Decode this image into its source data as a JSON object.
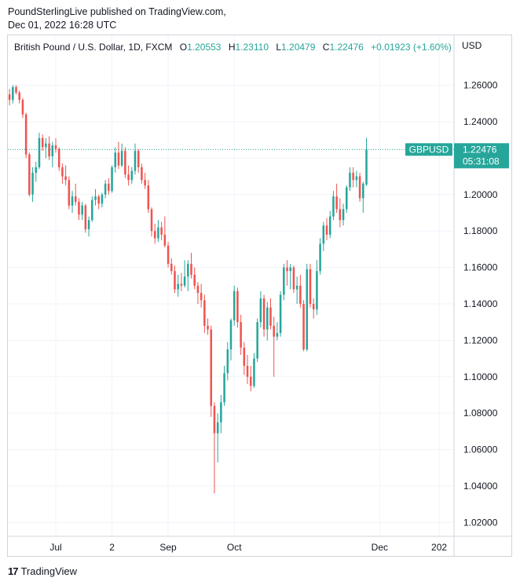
{
  "header": {
    "published_line": "PoundSterlingLive published on TradingView.com,",
    "date_line": "Dec 01, 2022 16:28 UTC"
  },
  "legend": {
    "symbol": "British Pound / U.S. Dollar, 1D, FXCM",
    "open_label": "O",
    "open": "1.20553",
    "high_label": "H",
    "high": "1.23110",
    "low_label": "L",
    "low": "1.20479",
    "close_label": "C",
    "close": "1.22476",
    "change": "+0.01923 (+1.60%)"
  },
  "footer": {
    "logo_mark": "17",
    "logo_text": "TradingView"
  },
  "colors": {
    "up": "#26a69a",
    "down": "#ef5350",
    "grid": "#f0f3fa",
    "axis_text": "#131722"
  },
  "chart_data": {
    "type": "candlestick",
    "symbol": "GBPUSD",
    "currency": "USD",
    "last_price": "1.22476",
    "countdown": "05:31:08",
    "y_ticks": [
      "1.26000",
      "1.24000",
      "1.22000",
      "1.20000",
      "1.18000",
      "1.16000",
      "1.14000",
      "1.12000",
      "1.10000",
      "1.08000",
      "1.06000",
      "1.04000",
      "1.02000"
    ],
    "ylim": [
      1.015,
      1.275
    ],
    "x_ticks": [
      {
        "label": "Jul",
        "index": 14
      },
      {
        "label": "2",
        "index": 31
      },
      {
        "label": "Sep",
        "index": 48
      },
      {
        "label": "Oct",
        "index": 68
      },
      {
        "label": "Dec",
        "index": 112
      },
      {
        "label": "202",
        "index": 130
      }
    ],
    "n_slots": 135,
    "candles": [
      {
        "o": 1.255,
        "h": 1.258,
        "l": 1.249,
        "c": 1.252
      },
      {
        "o": 1.252,
        "h": 1.26,
        "l": 1.25,
        "c": 1.259
      },
      {
        "o": 1.259,
        "h": 1.26,
        "l": 1.255,
        "c": 1.256
      },
      {
        "o": 1.256,
        "h": 1.257,
        "l": 1.25,
        "c": 1.252
      },
      {
        "o": 1.252,
        "h": 1.253,
        "l": 1.242,
        "c": 1.244
      },
      {
        "o": 1.244,
        "h": 1.245,
        "l": 1.22,
        "c": 1.222
      },
      {
        "o": 1.222,
        "h": 1.223,
        "l": 1.199,
        "c": 1.2
      },
      {
        "o": 1.2,
        "h": 1.215,
        "l": 1.196,
        "c": 1.212
      },
      {
        "o": 1.212,
        "h": 1.218,
        "l": 1.207,
        "c": 1.215
      },
      {
        "o": 1.215,
        "h": 1.234,
        "l": 1.214,
        "c": 1.231
      },
      {
        "o": 1.231,
        "h": 1.233,
        "l": 1.224,
        "c": 1.226
      },
      {
        "o": 1.226,
        "h": 1.231,
        "l": 1.22,
        "c": 1.228
      },
      {
        "o": 1.228,
        "h": 1.232,
        "l": 1.219,
        "c": 1.221
      },
      {
        "o": 1.221,
        "h": 1.229,
        "l": 1.215,
        "c": 1.227
      },
      {
        "o": 1.227,
        "h": 1.231,
        "l": 1.223,
        "c": 1.225
      },
      {
        "o": 1.225,
        "h": 1.226,
        "l": 1.213,
        "c": 1.215
      },
      {
        "o": 1.215,
        "h": 1.217,
        "l": 1.206,
        "c": 1.21
      },
      {
        "o": 1.21,
        "h": 1.216,
        "l": 1.205,
        "c": 1.208
      },
      {
        "o": 1.208,
        "h": 1.21,
        "l": 1.192,
        "c": 1.194
      },
      {
        "o": 1.194,
        "h": 1.202,
        "l": 1.19,
        "c": 1.199
      },
      {
        "o": 1.199,
        "h": 1.206,
        "l": 1.194,
        "c": 1.196
      },
      {
        "o": 1.196,
        "h": 1.198,
        "l": 1.186,
        "c": 1.189
      },
      {
        "o": 1.189,
        "h": 1.196,
        "l": 1.186,
        "c": 1.194
      },
      {
        "o": 1.194,
        "h": 1.195,
        "l": 1.179,
        "c": 1.181
      },
      {
        "o": 1.181,
        "h": 1.188,
        "l": 1.177,
        "c": 1.186
      },
      {
        "o": 1.186,
        "h": 1.199,
        "l": 1.185,
        "c": 1.197
      },
      {
        "o": 1.197,
        "h": 1.203,
        "l": 1.194,
        "c": 1.199
      },
      {
        "o": 1.199,
        "h": 1.2,
        "l": 1.192,
        "c": 1.195
      },
      {
        "o": 1.195,
        "h": 1.201,
        "l": 1.193,
        "c": 1.2
      },
      {
        "o": 1.2,
        "h": 1.208,
        "l": 1.198,
        "c": 1.206
      },
      {
        "o": 1.206,
        "h": 1.209,
        "l": 1.2,
        "c": 1.202
      },
      {
        "o": 1.202,
        "h": 1.216,
        "l": 1.201,
        "c": 1.215
      },
      {
        "o": 1.215,
        "h": 1.226,
        "l": 1.212,
        "c": 1.223
      },
      {
        "o": 1.223,
        "h": 1.229,
        "l": 1.214,
        "c": 1.216
      },
      {
        "o": 1.216,
        "h": 1.228,
        "l": 1.215,
        "c": 1.224
      },
      {
        "o": 1.224,
        "h": 1.226,
        "l": 1.209,
        "c": 1.211
      },
      {
        "o": 1.211,
        "h": 1.216,
        "l": 1.205,
        "c": 1.208
      },
      {
        "o": 1.208,
        "h": 1.215,
        "l": 1.206,
        "c": 1.213
      },
      {
        "o": 1.213,
        "h": 1.228,
        "l": 1.211,
        "c": 1.224
      },
      {
        "o": 1.224,
        "h": 1.225,
        "l": 1.212,
        "c": 1.215
      },
      {
        "o": 1.215,
        "h": 1.217,
        "l": 1.206,
        "c": 1.208
      },
      {
        "o": 1.208,
        "h": 1.212,
        "l": 1.203,
        "c": 1.205
      },
      {
        "o": 1.205,
        "h": 1.208,
        "l": 1.19,
        "c": 1.192
      },
      {
        "o": 1.192,
        "h": 1.193,
        "l": 1.177,
        "c": 1.18
      },
      {
        "o": 1.18,
        "h": 1.184,
        "l": 1.173,
        "c": 1.176
      },
      {
        "o": 1.176,
        "h": 1.186,
        "l": 1.174,
        "c": 1.182
      },
      {
        "o": 1.182,
        "h": 1.185,
        "l": 1.175,
        "c": 1.178
      },
      {
        "o": 1.178,
        "h": 1.188,
        "l": 1.171,
        "c": 1.172
      },
      {
        "o": 1.172,
        "h": 1.174,
        "l": 1.16,
        "c": 1.162
      },
      {
        "o": 1.162,
        "h": 1.165,
        "l": 1.156,
        "c": 1.158
      },
      {
        "o": 1.158,
        "h": 1.161,
        "l": 1.146,
        "c": 1.148
      },
      {
        "o": 1.148,
        "h": 1.156,
        "l": 1.144,
        "c": 1.151
      },
      {
        "o": 1.151,
        "h": 1.157,
        "l": 1.147,
        "c": 1.15
      },
      {
        "o": 1.15,
        "h": 1.164,
        "l": 1.149,
        "c": 1.155
      },
      {
        "o": 1.155,
        "h": 1.164,
        "l": 1.147,
        "c": 1.162
      },
      {
        "o": 1.162,
        "h": 1.168,
        "l": 1.154,
        "c": 1.156
      },
      {
        "o": 1.156,
        "h": 1.16,
        "l": 1.148,
        "c": 1.15
      },
      {
        "o": 1.15,
        "h": 1.152,
        "l": 1.14,
        "c": 1.146
      },
      {
        "o": 1.146,
        "h": 1.151,
        "l": 1.138,
        "c": 1.142
      },
      {
        "o": 1.142,
        "h": 1.145,
        "l": 1.124,
        "c": 1.128
      },
      {
        "o": 1.128,
        "h": 1.132,
        "l": 1.123,
        "c": 1.126
      },
      {
        "o": 1.126,
        "h": 1.128,
        "l": 1.078,
        "c": 1.084
      },
      {
        "o": 1.084,
        "h": 1.086,
        "l": 1.036,
        "c": 1.069
      },
      {
        "o": 1.069,
        "h": 1.08,
        "l": 1.053,
        "c": 1.075
      },
      {
        "o": 1.075,
        "h": 1.09,
        "l": 1.069,
        "c": 1.086
      },
      {
        "o": 1.086,
        "h": 1.106,
        "l": 1.084,
        "c": 1.102
      },
      {
        "o": 1.102,
        "h": 1.119,
        "l": 1.098,
        "c": 1.115
      },
      {
        "o": 1.115,
        "h": 1.132,
        "l": 1.109,
        "c": 1.131
      },
      {
        "o": 1.131,
        "h": 1.15,
        "l": 1.128,
        "c": 1.147
      },
      {
        "o": 1.147,
        "h": 1.149,
        "l": 1.127,
        "c": 1.13
      },
      {
        "o": 1.13,
        "h": 1.134,
        "l": 1.112,
        "c": 1.116
      },
      {
        "o": 1.116,
        "h": 1.119,
        "l": 1.101,
        "c": 1.106
      },
      {
        "o": 1.106,
        "h": 1.112,
        "l": 1.096,
        "c": 1.1
      },
      {
        "o": 1.1,
        "h": 1.106,
        "l": 1.092,
        "c": 1.095
      },
      {
        "o": 1.095,
        "h": 1.113,
        "l": 1.094,
        "c": 1.11
      },
      {
        "o": 1.11,
        "h": 1.132,
        "l": 1.108,
        "c": 1.13
      },
      {
        "o": 1.13,
        "h": 1.147,
        "l": 1.127,
        "c": 1.143
      },
      {
        "o": 1.143,
        "h": 1.145,
        "l": 1.122,
        "c": 1.126
      },
      {
        "o": 1.126,
        "h": 1.141,
        "l": 1.12,
        "c": 1.138
      },
      {
        "o": 1.138,
        "h": 1.143,
        "l": 1.126,
        "c": 1.128
      },
      {
        "o": 1.128,
        "h": 1.133,
        "l": 1.1,
        "c": 1.122
      },
      {
        "o": 1.122,
        "h": 1.13,
        "l": 1.12,
        "c": 1.124
      },
      {
        "o": 1.124,
        "h": 1.147,
        "l": 1.122,
        "c": 1.145
      },
      {
        "o": 1.145,
        "h": 1.162,
        "l": 1.142,
        "c": 1.16
      },
      {
        "o": 1.16,
        "h": 1.164,
        "l": 1.15,
        "c": 1.158
      },
      {
        "o": 1.158,
        "h": 1.162,
        "l": 1.148,
        "c": 1.16
      },
      {
        "o": 1.16,
        "h": 1.161,
        "l": 1.146,
        "c": 1.148
      },
      {
        "o": 1.148,
        "h": 1.155,
        "l": 1.14,
        "c": 1.15
      },
      {
        "o": 1.15,
        "h": 1.156,
        "l": 1.138,
        "c": 1.14
      },
      {
        "o": 1.14,
        "h": 1.142,
        "l": 1.114,
        "c": 1.115
      },
      {
        "o": 1.115,
        "h": 1.162,
        "l": 1.114,
        "c": 1.159
      },
      {
        "o": 1.159,
        "h": 1.162,
        "l": 1.138,
        "c": 1.14
      },
      {
        "o": 1.14,
        "h": 1.143,
        "l": 1.132,
        "c": 1.137
      },
      {
        "o": 1.137,
        "h": 1.164,
        "l": 1.134,
        "c": 1.158
      },
      {
        "o": 1.158,
        "h": 1.176,
        "l": 1.156,
        "c": 1.173
      },
      {
        "o": 1.173,
        "h": 1.185,
        "l": 1.169,
        "c": 1.183
      },
      {
        "o": 1.183,
        "h": 1.187,
        "l": 1.175,
        "c": 1.178
      },
      {
        "o": 1.178,
        "h": 1.191,
        "l": 1.176,
        "c": 1.188
      },
      {
        "o": 1.188,
        "h": 1.202,
        "l": 1.186,
        "c": 1.199
      },
      {
        "o": 1.199,
        "h": 1.206,
        "l": 1.19,
        "c": 1.192
      },
      {
        "o": 1.192,
        "h": 1.198,
        "l": 1.182,
        "c": 1.186
      },
      {
        "o": 1.186,
        "h": 1.195,
        "l": 1.183,
        "c": 1.192
      },
      {
        "o": 1.192,
        "h": 1.205,
        "l": 1.19,
        "c": 1.204
      },
      {
        "o": 1.204,
        "h": 1.215,
        "l": 1.202,
        "c": 1.212
      },
      {
        "o": 1.212,
        "h": 1.215,
        "l": 1.204,
        "c": 1.208
      },
      {
        "o": 1.208,
        "h": 1.213,
        "l": 1.204,
        "c": 1.21
      },
      {
        "o": 1.21,
        "h": 1.212,
        "l": 1.196,
        "c": 1.198
      },
      {
        "o": 1.198,
        "h": 1.207,
        "l": 1.19,
        "c": 1.206
      },
      {
        "o": 1.2055,
        "h": 1.2311,
        "l": 1.2048,
        "c": 1.2248
      }
    ]
  }
}
